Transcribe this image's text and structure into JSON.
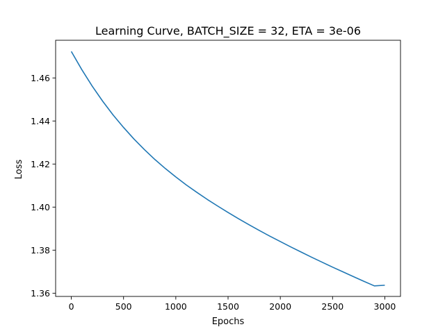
{
  "chart_data": {
    "type": "line",
    "title": "Learning Curve, BATCH_SIZE = 32, ETA = 3e-06",
    "xlabel": "Epochs",
    "ylabel": "Loss",
    "xlim": [
      -150,
      3150
    ],
    "ylim": [
      1.3585,
      1.4775
    ],
    "xticks": [
      0,
      500,
      1000,
      1500,
      2000,
      2500,
      3000
    ],
    "xtick_labels": [
      "0",
      "500",
      "1000",
      "1500",
      "2000",
      "2500",
      "3000"
    ],
    "yticks": [
      1.36,
      1.38,
      1.4,
      1.42,
      1.44,
      1.46
    ],
    "ytick_labels": [
      "1.36",
      "1.38",
      "1.40",
      "1.42",
      "1.44",
      "1.46"
    ],
    "grid": false,
    "legend": "none",
    "series": [
      {
        "color": "#1f77b4",
        "x": [
          0,
          100,
          200,
          300,
          400,
          500,
          600,
          700,
          800,
          900,
          1000,
          1100,
          1200,
          1300,
          1400,
          1500,
          1600,
          1700,
          1800,
          1900,
          2000,
          2100,
          2200,
          2300,
          2400,
          2500,
          2600,
          2700,
          2800,
          2900,
          3000
        ],
        "y": [
          1.4723,
          1.4639,
          1.4562,
          1.4492,
          1.4428,
          1.437,
          1.4316,
          1.4267,
          1.4221,
          1.4179,
          1.414,
          1.4103,
          1.4069,
          1.4036,
          1.4005,
          1.3975,
          1.3946,
          1.3918,
          1.3891,
          1.3865,
          1.384,
          1.3815,
          1.3791,
          1.3767,
          1.3744,
          1.3721,
          1.3699,
          1.3677,
          1.3655,
          1.3634,
          1.3637
        ]
      }
    ]
  }
}
